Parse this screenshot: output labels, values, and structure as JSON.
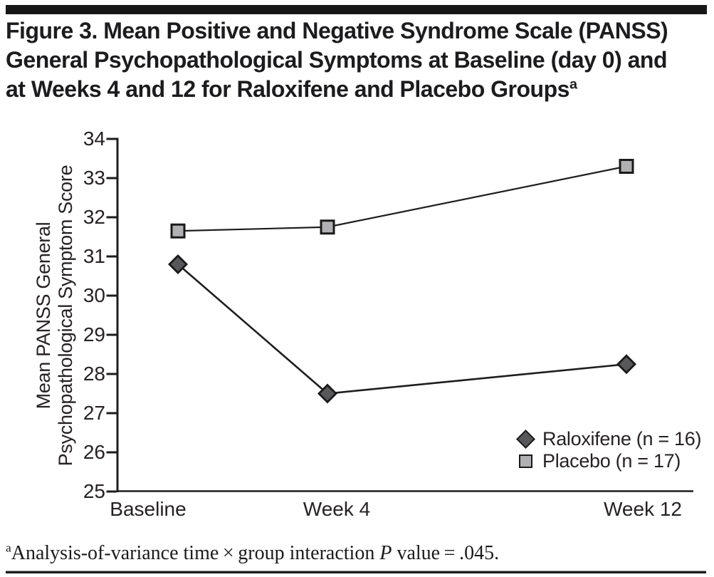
{
  "header": {
    "title_lines": [
      "Figure 3. Mean Positive and Negative Syndrome Scale (PANSS)",
      "General Psychopathological Symptoms at Baseline (day 0) and",
      "at Weeks 4 and 12 for Raloxifene and Placebo Groups"
    ],
    "title_superscript": "a"
  },
  "chart_data": {
    "type": "line",
    "x": [
      0,
      4,
      12
    ],
    "categories": [
      "Baseline",
      "Week 4",
      "Week 12"
    ],
    "series": [
      {
        "name": "Raloxifene (n = 16)",
        "marker": "diamond",
        "marker_fill": "#58585a",
        "values": [
          30.8,
          27.5,
          28.25
        ]
      },
      {
        "name": "Placebo (n = 17)",
        "marker": "square",
        "marker_fill": "#b1b1b3",
        "values": [
          31.65,
          31.75,
          33.3
        ]
      }
    ],
    "line_color": "#1e1e1e",
    "axis_color": "#1c1c1c",
    "ylabel_lines": [
      "Mean PANSS General",
      "Psychopathological Symptom Score"
    ],
    "ylim": [
      25,
      34
    ],
    "yticks": [
      34,
      33,
      32,
      31,
      30,
      29,
      28,
      27,
      26,
      25
    ],
    "grid": false,
    "legend_position": "lower right"
  },
  "footnote": {
    "superscript": "a",
    "text_before_p": "Analysis-of-variance time × group interaction ",
    "p_symbol": "P",
    "text_after_p": " value = .045."
  }
}
